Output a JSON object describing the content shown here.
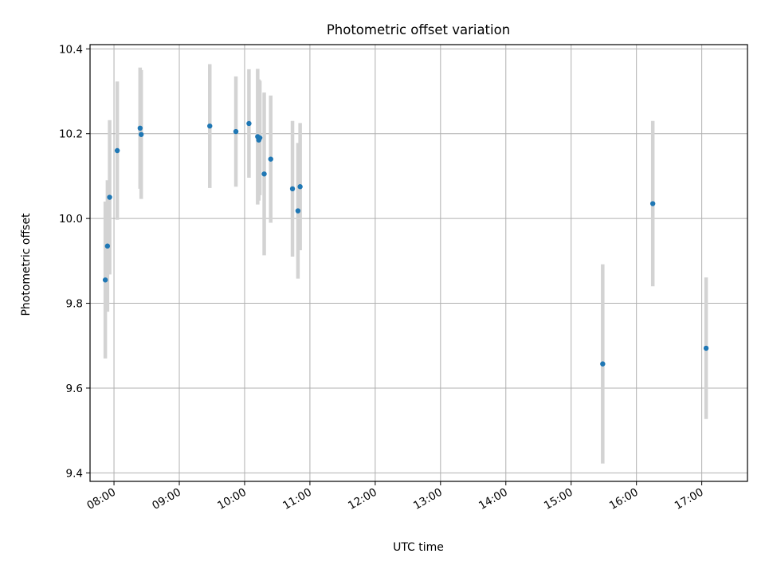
{
  "chart_data": {
    "type": "scatter",
    "title": "Photometric offset variation",
    "xlabel": "UTC time",
    "ylabel": "Photometric offset",
    "x_tick_labels": [
      "08:00",
      "09:00",
      "10:00",
      "11:00",
      "12:00",
      "13:00",
      "14:00",
      "15:00",
      "16:00",
      "17:00"
    ],
    "y_tick_labels": [
      "9.4",
      "9.6",
      "9.8",
      "10.0",
      "10.2",
      "10.4"
    ],
    "xlim": [
      "07:38",
      "17:42"
    ],
    "ylim": [
      9.38,
      10.41
    ],
    "grid": true,
    "colors": {
      "points": "#1f77b4",
      "errorbars": "#d3d3d3",
      "grid": "#b0b0b0"
    },
    "points": [
      {
        "x": "07:52",
        "y": 9.855,
        "err": 0.185
      },
      {
        "x": "07:54",
        "y": 9.935,
        "err": 0.155
      },
      {
        "x": "07:56",
        "y": 10.05,
        "err": 0.182
      },
      {
        "x": "08:03",
        "y": 10.16,
        "err": 0.163
      },
      {
        "x": "08:24",
        "y": 10.213,
        "err": 0.143
      },
      {
        "x": "08:25",
        "y": 10.198,
        "err": 0.152
      },
      {
        "x": "09:28",
        "y": 10.218,
        "err": 0.146
      },
      {
        "x": "09:52",
        "y": 10.205,
        "err": 0.13
      },
      {
        "x": "10:04",
        "y": 10.224,
        "err": 0.128
      },
      {
        "x": "10:12",
        "y": 10.193,
        "err": 0.16
      },
      {
        "x": "10:13",
        "y": 10.185,
        "err": 0.143
      },
      {
        "x": "10:14",
        "y": 10.19,
        "err": 0.135
      },
      {
        "x": "10:18",
        "y": 10.105,
        "err": 0.192
      },
      {
        "x": "10:24",
        "y": 10.14,
        "err": 0.15
      },
      {
        "x": "10:44",
        "y": 10.07,
        "err": 0.16
      },
      {
        "x": "10:49",
        "y": 10.018,
        "err": 0.16
      },
      {
        "x": "10:51",
        "y": 10.075,
        "err": 0.15
      },
      {
        "x": "15:29",
        "y": 9.657,
        "err": 0.235
      },
      {
        "x": "16:15",
        "y": 10.035,
        "err": 0.195
      },
      {
        "x": "17:04",
        "y": 9.694,
        "err": 0.167
      }
    ]
  }
}
